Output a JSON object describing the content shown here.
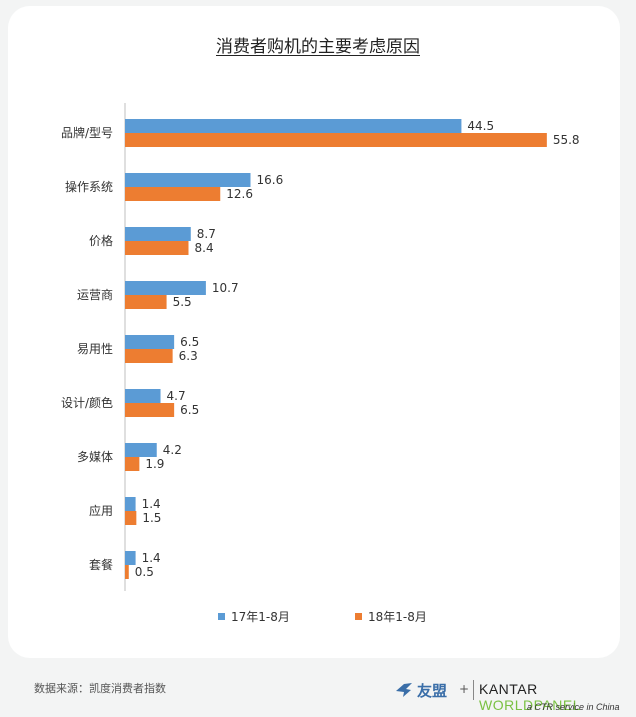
{
  "chart_data": {
    "type": "bar",
    "orientation": "horizontal",
    "title": "消费者购机的主要考虑原因",
    "categories": [
      "品牌/型号",
      "操作系统",
      "价格",
      "运营商",
      "易用性",
      "设计/颜色",
      "多媒体",
      "应用",
      "套餐"
    ],
    "series": [
      {
        "name": "17年1-8月",
        "color": "#5b9bd5",
        "values": [
          44.5,
          16.6,
          8.7,
          10.7,
          6.5,
          4.7,
          4.2,
          1.4,
          1.4
        ]
      },
      {
        "name": "18年1-8月",
        "color": "#ed7d31",
        "values": [
          55.8,
          12.6,
          8.4,
          5.5,
          6.3,
          6.5,
          1.9,
          1.5,
          0.5
        ]
      }
    ],
    "xlim": [
      0,
      60
    ],
    "grid": false,
    "legend_position": "bottom"
  },
  "footer": {
    "source": "数据来源：凯度消费者指数",
    "brand_cn": "友盟",
    "plus": "+",
    "kantar": "KANTAR",
    "worldpanel": "WORLDPANEL",
    "ctr_line": "a CTR service in China"
  }
}
